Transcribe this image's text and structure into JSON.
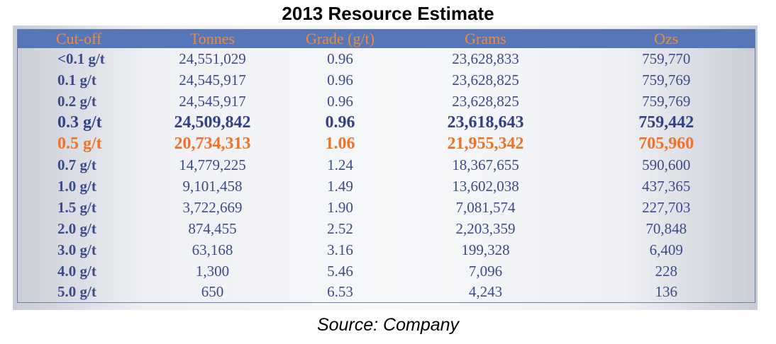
{
  "chart_data": {
    "type": "table",
    "title": "2013 Resource Estimate",
    "source": "Source: Company",
    "columns": [
      "Cut-off",
      "Tonnes",
      "Grade (g/t)",
      "Grams",
      "Ozs"
    ],
    "rows": [
      {
        "style": "normal",
        "cells": [
          "<0.1 g/t",
          "24,551,029",
          "0.96",
          "23,628,833",
          "759,770"
        ]
      },
      {
        "style": "normal",
        "cells": [
          "0.1 g/t",
          "24,545,917",
          "0.96",
          "23,628,825",
          "759,769"
        ]
      },
      {
        "style": "normal",
        "cells": [
          "0.2 g/t",
          "24,545,917",
          "0.96",
          "23,628,825",
          "759,769"
        ]
      },
      {
        "style": "emph",
        "cells": [
          "0.3 g/t",
          "24,509,842",
          "0.96",
          "23,618,643",
          "759,442"
        ]
      },
      {
        "style": "high",
        "cells": [
          "0.5 g/t",
          "20,734,313",
          "1.06",
          "21,955,342",
          "705,960"
        ]
      },
      {
        "style": "normal",
        "cells": [
          "0.7 g/t",
          "14,779,225",
          "1.24",
          "18,367,655",
          "590,600"
        ]
      },
      {
        "style": "normal",
        "cells": [
          "1.0 g/t",
          "9,101,458",
          "1.49",
          "13,602,038",
          "437,365"
        ]
      },
      {
        "style": "normal",
        "cells": [
          "1.5 g/t",
          "3,722,669",
          "1.90",
          "7,081,574",
          "227,703"
        ]
      },
      {
        "style": "normal",
        "cells": [
          "2.0 g/t",
          "874,455",
          "2.52",
          "2,203,359",
          "70,848"
        ]
      },
      {
        "style": "normal",
        "cells": [
          "3.0 g/t",
          "63,168",
          "3.16",
          "199,328",
          "6,409"
        ]
      },
      {
        "style": "normal",
        "cells": [
          "4.0 g/t",
          "1,300",
          "5.46",
          "7,096",
          "228"
        ]
      },
      {
        "style": "normal",
        "cells": [
          "5.0 g/t",
          "650",
          "6.53",
          "4,243",
          "136"
        ]
      }
    ],
    "colors": {
      "header_bg": "#5577b9",
      "header_text": "#f08a3a",
      "body_text": "#3a4c8c",
      "highlight_text": "#ee7326"
    }
  }
}
